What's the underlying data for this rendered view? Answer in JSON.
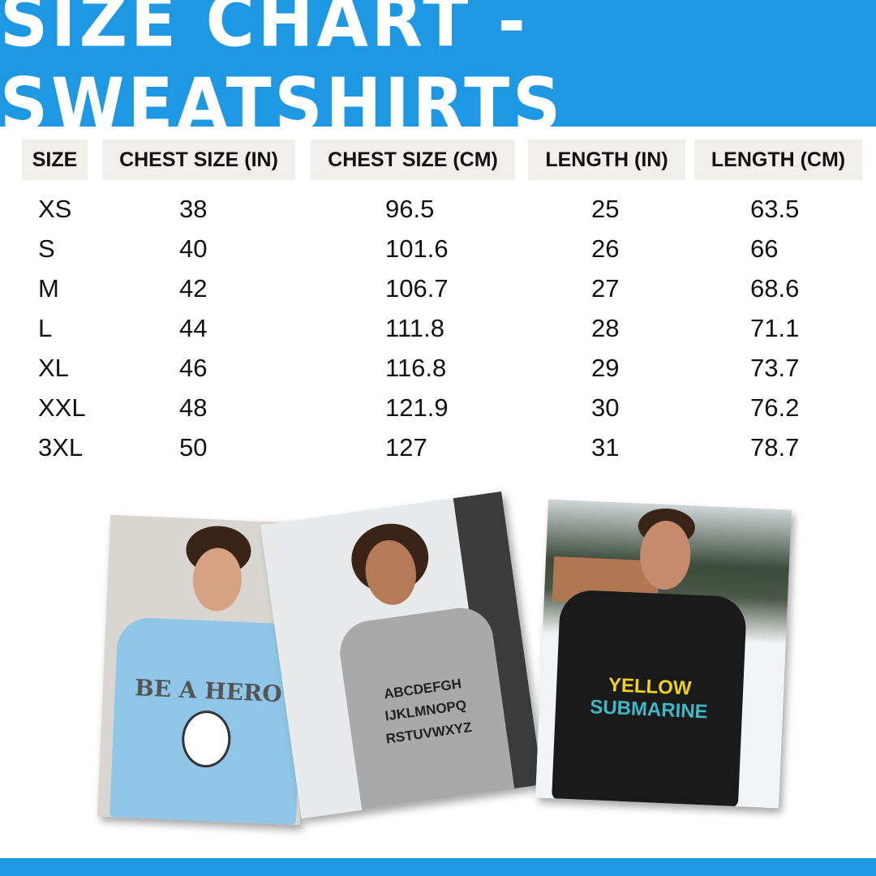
{
  "title": "SIZE CHART - SWEATSHIRTS",
  "colors": {
    "brand_blue": "#1e98e2",
    "header_cell_bg": "#f0efeb"
  },
  "table": {
    "headers": [
      "SIZE",
      "CHEST SIZE (IN)",
      "CHEST SIZE (CM)",
      "LENGTH (IN)",
      "LENGTH (CM)"
    ],
    "rows": [
      [
        "XS",
        "38",
        "96.5",
        "25",
        "63.5"
      ],
      [
        "S",
        "40",
        "101.6",
        "26",
        "66"
      ],
      [
        "M",
        "42",
        "106.7",
        "27",
        "68.6"
      ],
      [
        "L",
        "44",
        "111.8",
        "28",
        "71.1"
      ],
      [
        "XL",
        "46",
        "116.8",
        "29",
        "73.7"
      ],
      [
        "XXL",
        "48",
        "121.9",
        "30",
        "76.2"
      ],
      [
        "3XL",
        "50",
        "127",
        "31",
        "78.7"
      ]
    ]
  },
  "photos": [
    {
      "shirt_color": "#8fc6e8",
      "print": "BE A HERO"
    },
    {
      "shirt_color": "#a9a9a9",
      "print": "ABCDEFGH IJKLMNOPQ RSTUVWXYZ"
    },
    {
      "shirt_color": "#1a1a1a",
      "print": "YELLOW SUBMARINE"
    }
  ]
}
